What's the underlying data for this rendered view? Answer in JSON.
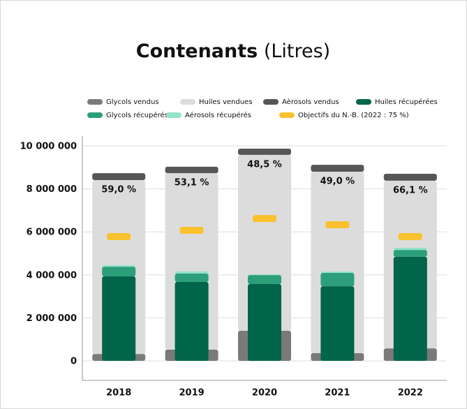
{
  "chart_data": {
    "type": "bar",
    "title": "Contenants",
    "subtitle": "(Litres)",
    "categories": [
      "2018",
      "2019",
      "2020",
      "2021",
      "2022"
    ],
    "series": [
      {
        "name": "Glycols vendus",
        "color": "#7a7a7a",
        "values": [
          320000,
          520000,
          1400000,
          360000,
          580000
        ]
      },
      {
        "name": "Huiles vendues",
        "color": "#dcdcdc",
        "values": [
          8090000,
          8210000,
          8180000,
          8440000,
          7800000
        ]
      },
      {
        "name": "Aèrosols vendus",
        "color": "#565656",
        "values": [
          320000,
          300000,
          290000,
          320000,
          320000
        ]
      },
      {
        "name": "Huiles récupérées",
        "color": "#00654a",
        "values": [
          3930000,
          3670000,
          3570000,
          3470000,
          4840000
        ]
      },
      {
        "name": "Glycols récupérés",
        "color": "#2c9f7a",
        "values": [
          450000,
          390000,
          420000,
          620000,
          320000
        ]
      },
      {
        "name": "Aérosols récupérés",
        "color": "#93e2c9",
        "values": [
          70000,
          100000,
          30000,
          60000,
          100000
        ]
      },
      {
        "name": "Objectifs du N.-B. (2022 : 75 %)",
        "color": "#f9c12e",
        "values": [
          5780000,
          6070000,
          6620000,
          6330000,
          5780000
        ]
      }
    ],
    "rates": {
      "values": [
        59.0,
        53.1,
        48.5,
        49.0,
        66.1
      ],
      "value_labels": [
        "59,0 %",
        "53,1 %",
        "48,5 %",
        "49,0 %",
        "66,1 %"
      ]
    },
    "ylim": [
      0,
      10000000
    ],
    "yticks": [
      0,
      {
        "value": 2000000,
        "label": "2 000 000"
      },
      {
        "value": 4000000,
        "label": "4 000 000"
      },
      {
        "value": 6000000,
        "label": "6 000 000"
      },
      {
        "value": 8000000,
        "label": "8 000 000"
      },
      {
        "value": 10000000,
        "label": "10 000 000"
      }
    ],
    "grid": true
  }
}
